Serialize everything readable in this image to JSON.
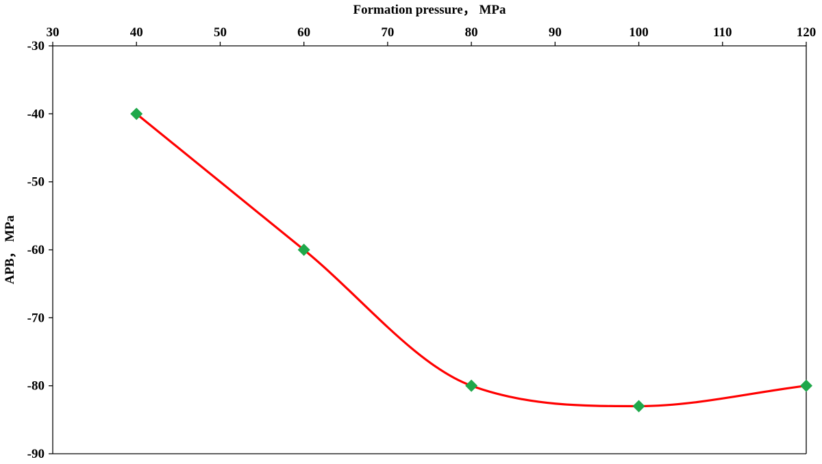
{
  "chart_data": {
    "type": "line",
    "title": "",
    "xlabel": "Formation pressure， MPa",
    "ylabel": "APB， MPa",
    "x_axis_position": "top",
    "xlim": [
      30,
      120
    ],
    "ylim": [
      -90,
      -30
    ],
    "x_ticks": [
      30,
      40,
      50,
      60,
      70,
      80,
      90,
      100,
      110,
      120
    ],
    "y_ticks": [
      -30,
      -40,
      -50,
      -60,
      -70,
      -80,
      -90
    ],
    "grid": false,
    "legend": "none",
    "smooth": true,
    "line_color": "#ff0000",
    "marker": "diamond",
    "marker_color": "#1fa84a",
    "series": [
      {
        "x": [
          40,
          60,
          80,
          100,
          120
        ],
        "values": [
          -40,
          -60,
          -80,
          -83,
          -80
        ]
      }
    ]
  }
}
